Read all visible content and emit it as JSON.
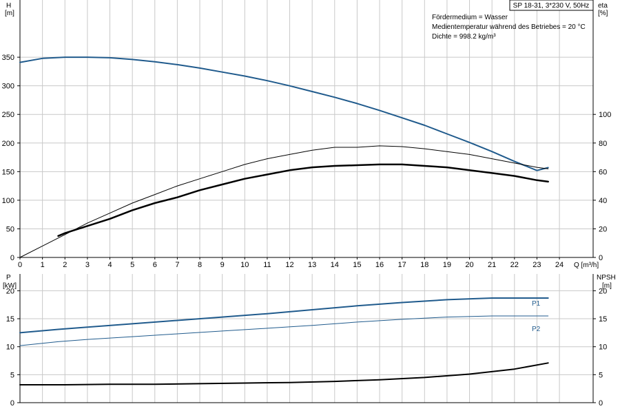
{
  "header": {
    "title": "SP 18-31, 3*230 V, 50Hz",
    "info_lines": [
      "Fördermedium = Wasser",
      "Medientemperatur während des Betriebes = 20 °C",
      "Dichte = 998.2 kg/m³"
    ]
  },
  "colors": {
    "blue": "#1f5a8c",
    "black": "#000000",
    "grid": "#c8c8c8"
  },
  "chart_data": [
    {
      "type": "line",
      "name": "head-efficiency",
      "x_label": "Q [m³/h]",
      "xlim": [
        0,
        25.5
      ],
      "x_ticks": [
        0,
        1,
        2,
        3,
        4,
        5,
        6,
        7,
        8,
        9,
        10,
        11,
        12,
        13,
        14,
        15,
        16,
        17,
        18,
        19,
        20,
        21,
        22,
        23,
        24
      ],
      "y_left": {
        "label_top": "H",
        "label_unit": "[m]",
        "lim": [
          0,
          450
        ],
        "ticks": [
          0,
          50,
          100,
          150,
          200,
          250,
          300,
          350
        ]
      },
      "y_right": {
        "label_top": "eta",
        "label_unit": "[%]",
        "lim": [
          0,
          180
        ],
        "ticks": [
          0,
          20,
          40,
          60,
          80,
          100
        ]
      },
      "grid": true,
      "series": [
        {
          "axis": "left",
          "color": "#1f5a8c",
          "width": 2,
          "points": [
            [
              0,
              341
            ],
            [
              1,
              348
            ],
            [
              2,
              350
            ],
            [
              3,
              350
            ],
            [
              4,
              349
            ],
            [
              5,
              346
            ],
            [
              6,
              342
            ],
            [
              7,
              337
            ],
            [
              8,
              331
            ],
            [
              9,
              324
            ],
            [
              10,
              317
            ],
            [
              11,
              309
            ],
            [
              12,
              300
            ],
            [
              13,
              290
            ],
            [
              14,
              280
            ],
            [
              15,
              269
            ],
            [
              16,
              257
            ],
            [
              17,
              244
            ],
            [
              18,
              231
            ],
            [
              19,
              216
            ],
            [
              20,
              201
            ],
            [
              21,
              185
            ],
            [
              22,
              168
            ],
            [
              23,
              152
            ],
            [
              23.5,
              157
            ]
          ]
        },
        {
          "axis": "right",
          "color": "#000000",
          "width": 1,
          "points": [
            [
              0,
              0
            ],
            [
              1,
              8
            ],
            [
              2,
              16
            ],
            [
              3,
              24
            ],
            [
              4,
              31
            ],
            [
              5,
              38
            ],
            [
              6,
              44
            ],
            [
              7,
              50
            ],
            [
              8,
              55
            ],
            [
              9,
              60
            ],
            [
              10,
              65
            ],
            [
              11,
              69
            ],
            [
              12,
              72
            ],
            [
              13,
              75
            ],
            [
              14,
              77
            ],
            [
              15,
              77
            ],
            [
              16,
              78
            ],
            [
              17,
              77.5
            ],
            [
              18,
              76
            ],
            [
              19,
              74
            ],
            [
              20,
              72
            ],
            [
              21,
              69
            ],
            [
              22,
              66
            ],
            [
              23,
              63
            ],
            [
              23.5,
              62
            ]
          ]
        },
        {
          "axis": "right",
          "color": "#000000",
          "width": 2.5,
          "points": [
            [
              1.7,
              15
            ],
            [
              2,
              17
            ],
            [
              3,
              22
            ],
            [
              4,
              27
            ],
            [
              5,
              33
            ],
            [
              6,
              38
            ],
            [
              7,
              42
            ],
            [
              8,
              47
            ],
            [
              9,
              51
            ],
            [
              10,
              55
            ],
            [
              11,
              58
            ],
            [
              12,
              61
            ],
            [
              13,
              63
            ],
            [
              14,
              64
            ],
            [
              15,
              64.5
            ],
            [
              16,
              65
            ],
            [
              17,
              65
            ],
            [
              18,
              64
            ],
            [
              19,
              63
            ],
            [
              20,
              61
            ],
            [
              21,
              59
            ],
            [
              22,
              57
            ],
            [
              23,
              54
            ],
            [
              23.5,
              53
            ]
          ]
        }
      ]
    },
    {
      "type": "line",
      "name": "power-npsh",
      "xlim": [
        0,
        25.5
      ],
      "y_left": {
        "label_top": "P",
        "label_unit": "[kW]",
        "lim": [
          0,
          23
        ],
        "ticks": [
          0,
          5,
          10,
          15,
          20
        ]
      },
      "y_right": {
        "label_top": "NPSH",
        "label_unit": "[m]",
        "lim": [
          0,
          23
        ],
        "ticks": [
          0,
          5,
          10,
          15,
          20
        ]
      },
      "grid": true,
      "series": [
        {
          "name": "P1",
          "axis": "left",
          "color": "#1f5a8c",
          "width": 2,
          "points": [
            [
              0,
              12.5
            ],
            [
              1.7,
              13.1
            ],
            [
              3,
              13.5
            ],
            [
              5,
              14.1
            ],
            [
              7,
              14.7
            ],
            [
              9,
              15.3
            ],
            [
              11,
              15.9
            ],
            [
              13,
              16.6
            ],
            [
              15,
              17.3
            ],
            [
              17,
              17.9
            ],
            [
              19,
              18.4
            ],
            [
              21,
              18.7
            ],
            [
              23.5,
              18.7
            ]
          ]
        },
        {
          "name": "P2",
          "axis": "left",
          "color": "#1f5a8c",
          "width": 1,
          "points": [
            [
              0,
              10.2
            ],
            [
              1.7,
              10.9
            ],
            [
              3,
              11.3
            ],
            [
              5,
              11.8
            ],
            [
              7,
              12.3
            ],
            [
              9,
              12.8
            ],
            [
              11,
              13.3
            ],
            [
              13,
              13.8
            ],
            [
              15,
              14.4
            ],
            [
              17,
              14.9
            ],
            [
              19,
              15.3
            ],
            [
              21,
              15.5
            ],
            [
              23.5,
              15.5
            ]
          ]
        },
        {
          "axis": "right",
          "color": "#000000",
          "width": 2,
          "points": [
            [
              0,
              3.2
            ],
            [
              2,
              3.2
            ],
            [
              4,
              3.3
            ],
            [
              6,
              3.3
            ],
            [
              8,
              3.4
            ],
            [
              10,
              3.5
            ],
            [
              12,
              3.6
            ],
            [
              14,
              3.8
            ],
            [
              16,
              4.1
            ],
            [
              18,
              4.5
            ],
            [
              20,
              5.1
            ],
            [
              22,
              6.0
            ],
            [
              23.5,
              7.1
            ]
          ]
        }
      ]
    }
  ]
}
